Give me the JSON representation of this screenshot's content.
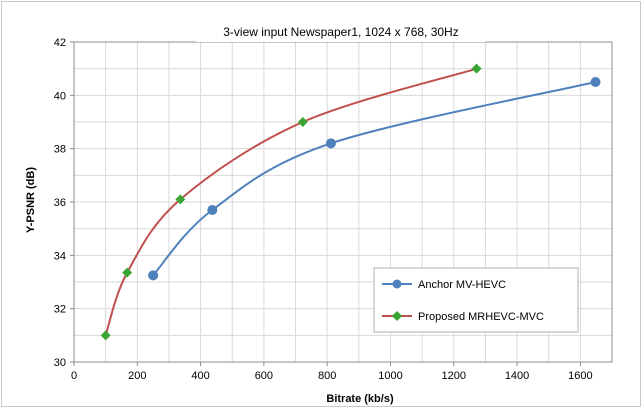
{
  "chart_data": {
    "type": "line",
    "title": "3-view input Newspaper1, 1024 x 768, 30Hz",
    "xlabel": "Bitrate (kb/s)",
    "ylabel": "Y-PSNR (dB)",
    "xlim": [
      0,
      1700
    ],
    "ylim": [
      30,
      42
    ],
    "xticks": [
      0,
      200,
      400,
      600,
      800,
      1000,
      1200,
      1400,
      1600
    ],
    "yticks": [
      30,
      32,
      34,
      36,
      38,
      40,
      42
    ],
    "grid": true,
    "legend_position": "bottom-right",
    "series": [
      {
        "name": "Anchor MV-HEVC",
        "color": "#4f81bd",
        "marker": "circle",
        "points": [
          [
            250,
            33.25
          ],
          [
            437,
            35.7
          ],
          [
            812,
            38.2
          ],
          [
            1648,
            40.5
          ]
        ]
      },
      {
        "name": "Proposed MRHEVC-MVC",
        "color": "#c0504d",
        "marker": "diamond",
        "marker_color": "#3aa535",
        "points": [
          [
            100,
            31.0
          ],
          [
            168,
            33.35
          ],
          [
            336,
            36.1
          ],
          [
            723,
            39.0
          ],
          [
            1272,
            41.0
          ]
        ]
      }
    ]
  }
}
